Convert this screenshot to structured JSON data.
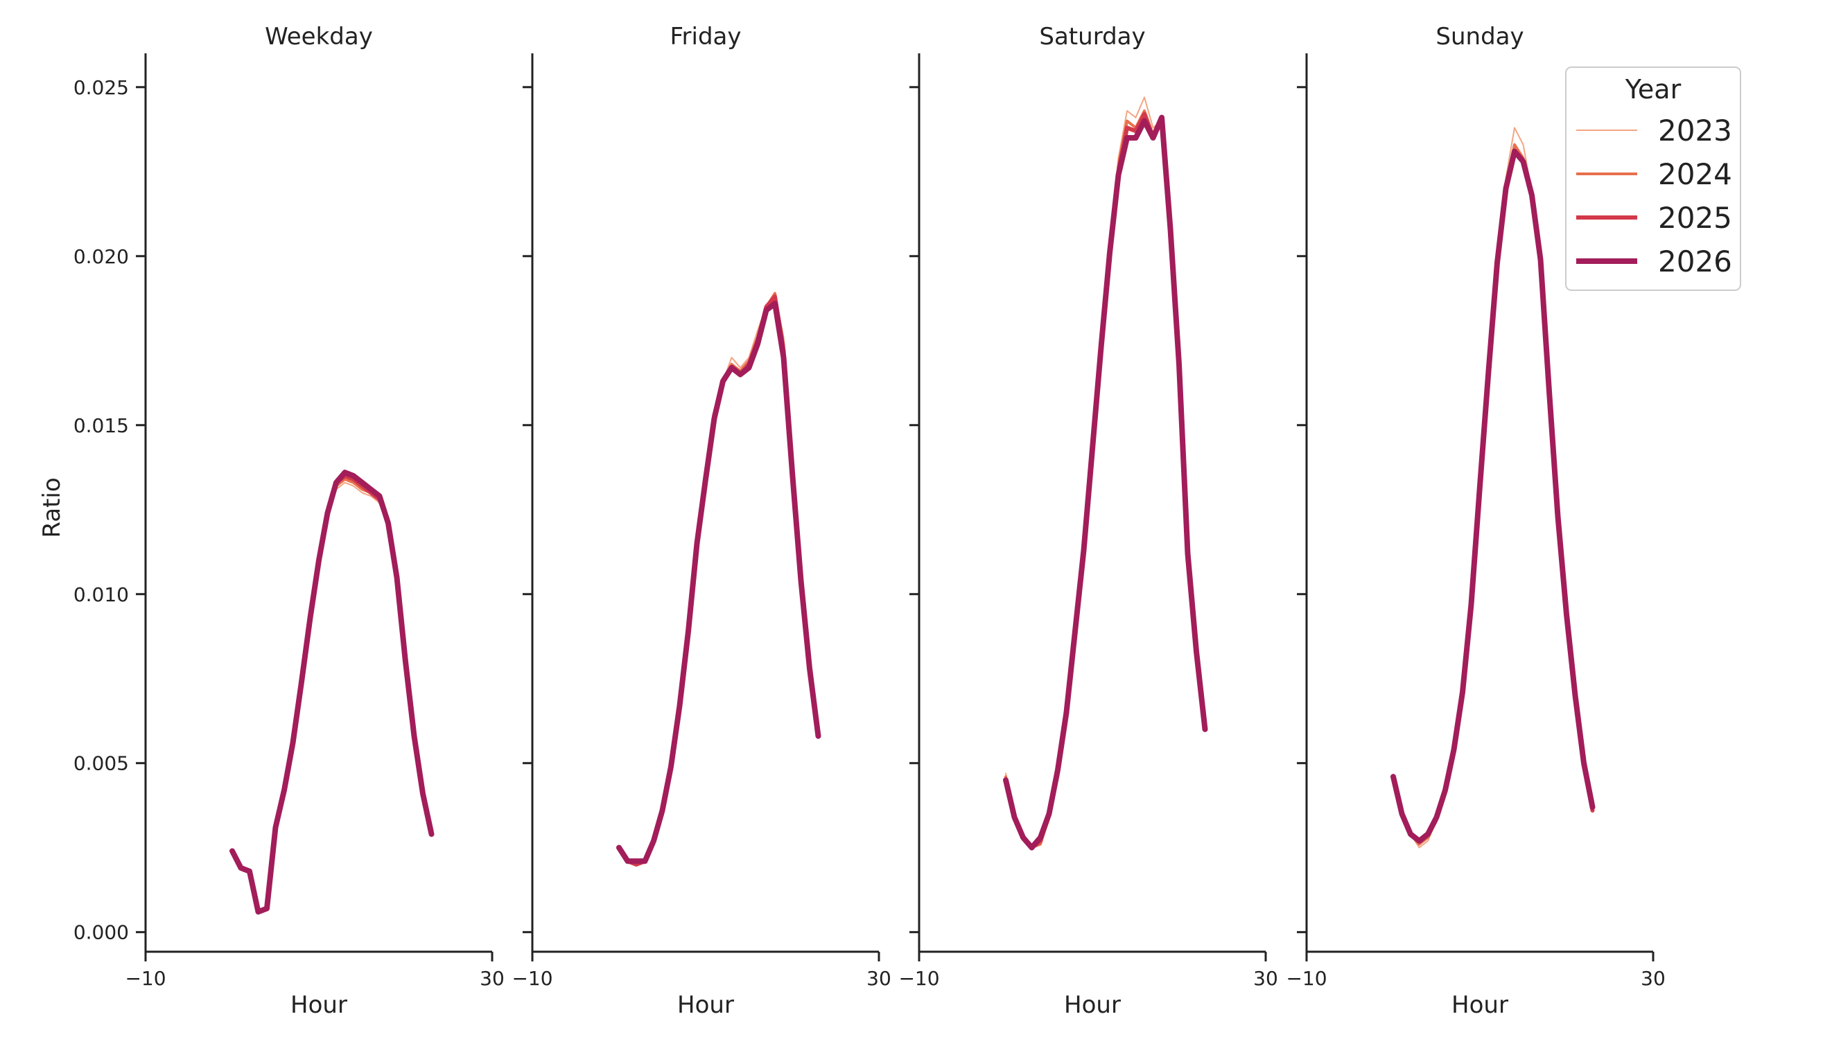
{
  "chart_data": {
    "type": "line",
    "ylabel": "Ratio",
    "xlim": [
      -10,
      30
    ],
    "ylim": [
      -0.0006,
      0.026
    ],
    "x_ticks": [
      {
        "value": -10,
        "label": "−10"
      },
      {
        "value": 30,
        "label": "30"
      }
    ],
    "y_ticks": [
      {
        "value": 0.0,
        "label": "0.000"
      },
      {
        "value": 0.005,
        "label": "0.005"
      },
      {
        "value": 0.01,
        "label": "0.010"
      },
      {
        "value": 0.015,
        "label": "0.015"
      },
      {
        "value": 0.02,
        "label": "0.020"
      },
      {
        "value": 0.025,
        "label": "0.025"
      }
    ],
    "legend": {
      "title": "Year",
      "placement": "upper right",
      "entries": [
        {
          "label": "2023",
          "color": "#f4a582",
          "width": 2
        },
        {
          "label": "2024",
          "color": "#e8704d",
          "width": 4
        },
        {
          "label": "2025",
          "color": "#d3394a",
          "width": 6
        },
        {
          "label": "2026",
          "color": "#a21d5a",
          "width": 8
        }
      ]
    },
    "panels": [
      {
        "title": "Weekday",
        "xlabel": "Hour",
        "x": [
          0,
          1,
          2,
          3,
          4,
          5,
          6,
          7,
          8,
          9,
          10,
          11,
          12,
          13,
          14,
          15,
          16,
          17,
          18,
          19,
          20,
          21,
          22,
          23
        ],
        "series": [
          {
            "name": "2023",
            "values": [
              0.0024,
              0.0019,
              0.0018,
              0.0006,
              0.0007,
              0.0031,
              0.0042,
              0.0056,
              0.0074,
              0.0093,
              0.011,
              0.0124,
              0.0131,
              0.0133,
              0.0132,
              0.013,
              0.0129,
              0.0127,
              0.012,
              0.0104,
              0.008,
              0.0058,
              0.0041,
              0.003
            ]
          },
          {
            "name": "2024",
            "values": [
              0.0024,
              0.0019,
              0.0018,
              0.0006,
              0.0007,
              0.0031,
              0.0042,
              0.0056,
              0.0074,
              0.0093,
              0.011,
              0.0124,
              0.0132,
              0.0134,
              0.0133,
              0.0131,
              0.013,
              0.0128,
              0.0121,
              0.0105,
              0.008,
              0.0058,
              0.0041,
              0.003
            ]
          },
          {
            "name": "2025",
            "values": [
              0.0024,
              0.0019,
              0.0018,
              0.0006,
              0.0007,
              0.0031,
              0.0042,
              0.0056,
              0.0074,
              0.0093,
              0.011,
              0.0124,
              0.0133,
              0.0135,
              0.0134,
              0.0132,
              0.013,
              0.0128,
              0.0121,
              0.0105,
              0.008,
              0.0058,
              0.0041,
              0.003
            ]
          },
          {
            "name": "2026",
            "values": [
              0.0024,
              0.0019,
              0.0018,
              0.0006,
              0.0007,
              0.0031,
              0.0042,
              0.0056,
              0.0074,
              0.0093,
              0.011,
              0.0124,
              0.0133,
              0.0136,
              0.0135,
              0.0133,
              0.0131,
              0.0129,
              0.0121,
              0.0105,
              0.008,
              0.0058,
              0.0041,
              0.0029
            ]
          }
        ]
      },
      {
        "title": "Friday",
        "xlabel": "Hour",
        "x": [
          0,
          1,
          2,
          3,
          4,
          5,
          6,
          7,
          8,
          9,
          10,
          11,
          12,
          13,
          14,
          15,
          16,
          17,
          18,
          19,
          20,
          21,
          22,
          23
        ],
        "series": [
          {
            "name": "2023",
            "values": [
              0.0025,
              0.0021,
              0.002,
              0.0021,
              0.0027,
              0.0036,
              0.0049,
              0.0067,
              0.0089,
              0.0115,
              0.0134,
              0.0153,
              0.0163,
              0.017,
              0.0167,
              0.017,
              0.0178,
              0.0185,
              0.0189,
              0.0176,
              0.0136,
              0.0105,
              0.0078,
              0.0058
            ]
          },
          {
            "name": "2024",
            "values": [
              0.0025,
              0.0021,
              0.002,
              0.0021,
              0.0027,
              0.0036,
              0.0049,
              0.0067,
              0.0089,
              0.0115,
              0.0134,
              0.0153,
              0.0163,
              0.0168,
              0.0166,
              0.0169,
              0.0176,
              0.0185,
              0.0189,
              0.0174,
              0.0136,
              0.0105,
              0.0078,
              0.0058
            ]
          },
          {
            "name": "2025",
            "values": [
              0.0025,
              0.0021,
              0.002,
              0.0021,
              0.0027,
              0.0036,
              0.0049,
              0.0067,
              0.0089,
              0.0115,
              0.0134,
              0.0153,
              0.0163,
              0.0167,
              0.0165,
              0.0168,
              0.0175,
              0.0185,
              0.0188,
              0.0172,
              0.0136,
              0.0105,
              0.0078,
              0.0058
            ]
          },
          {
            "name": "2026",
            "values": [
              0.0025,
              0.0021,
              0.0021,
              0.0021,
              0.0027,
              0.0036,
              0.0049,
              0.0067,
              0.0089,
              0.0115,
              0.0134,
              0.0152,
              0.0163,
              0.0167,
              0.0165,
              0.0167,
              0.0174,
              0.0184,
              0.0186,
              0.017,
              0.0136,
              0.0104,
              0.0078,
              0.0058
            ]
          }
        ]
      },
      {
        "title": "Saturday",
        "xlabel": "Hour",
        "x": [
          0,
          1,
          2,
          3,
          4,
          5,
          6,
          7,
          8,
          9,
          10,
          11,
          12,
          13,
          14,
          15,
          16,
          17,
          18,
          19,
          20,
          21,
          22,
          23
        ],
        "series": [
          {
            "name": "2023",
            "values": [
              0.0047,
              0.0034,
              0.0028,
              0.0025,
              0.0026,
              0.0033,
              0.0045,
              0.0062,
              0.0087,
              0.0112,
              0.0142,
              0.0173,
              0.0201,
              0.0229,
              0.0243,
              0.0241,
              0.0247,
              0.0238,
              0.024,
              0.0208,
              0.0168,
              0.0112,
              0.0083,
              0.006
            ]
          },
          {
            "name": "2024",
            "values": [
              0.0046,
              0.0034,
              0.0028,
              0.0025,
              0.0026,
              0.0034,
              0.0046,
              0.0063,
              0.0088,
              0.0113,
              0.0143,
              0.0173,
              0.0201,
              0.0227,
              0.024,
              0.0238,
              0.0243,
              0.0236,
              0.024,
              0.0208,
              0.0168,
              0.0112,
              0.0083,
              0.006
            ]
          },
          {
            "name": "2025",
            "values": [
              0.0045,
              0.0034,
              0.0028,
              0.0025,
              0.0027,
              0.0035,
              0.0047,
              0.0064,
              0.0089,
              0.0113,
              0.0143,
              0.0173,
              0.0201,
              0.0225,
              0.0238,
              0.0237,
              0.0242,
              0.0235,
              0.024,
              0.0208,
              0.0168,
              0.0112,
              0.0083,
              0.006
            ]
          },
          {
            "name": "2026",
            "values": [
              0.0045,
              0.0034,
              0.0028,
              0.0025,
              0.0028,
              0.0035,
              0.0048,
              0.0065,
              0.0089,
              0.0113,
              0.0143,
              0.0173,
              0.0201,
              0.0224,
              0.0235,
              0.0235,
              0.024,
              0.0235,
              0.0241,
              0.0208,
              0.0168,
              0.0112,
              0.0083,
              0.006
            ]
          }
        ]
      },
      {
        "title": "Sunday",
        "xlabel": "Hour",
        "x": [
          0,
          1,
          2,
          3,
          4,
          5,
          6,
          7,
          8,
          9,
          10,
          11,
          12,
          13,
          14,
          15,
          16,
          17,
          18,
          19,
          20,
          21,
          22,
          23
        ],
        "series": [
          {
            "name": "2023",
            "values": [
              0.0046,
              0.0035,
              0.0029,
              0.0025,
              0.0027,
              0.0033,
              0.0042,
              0.0054,
              0.0071,
              0.0097,
              0.0132,
              0.0168,
              0.0199,
              0.0223,
              0.0238,
              0.0233,
              0.0219,
              0.0199,
              0.016,
              0.0123,
              0.0094,
              0.007,
              0.005,
              0.0036
            ]
          },
          {
            "name": "2024",
            "values": [
              0.0046,
              0.0035,
              0.0029,
              0.0026,
              0.0028,
              0.0033,
              0.0042,
              0.0054,
              0.0071,
              0.0097,
              0.0132,
              0.0167,
              0.0198,
              0.0221,
              0.0233,
              0.0229,
              0.0218,
              0.0199,
              0.016,
              0.0123,
              0.0094,
              0.007,
              0.005,
              0.0036
            ]
          },
          {
            "name": "2025",
            "values": [
              0.0046,
              0.0035,
              0.0029,
              0.0027,
              0.0029,
              0.0034,
              0.0042,
              0.0054,
              0.0071,
              0.0097,
              0.0132,
              0.0166,
              0.0198,
              0.022,
              0.0231,
              0.0228,
              0.0218,
              0.0199,
              0.016,
              0.0123,
              0.0094,
              0.007,
              0.005,
              0.0036
            ]
          },
          {
            "name": "2026",
            "values": [
              0.0046,
              0.0035,
              0.0029,
              0.0027,
              0.0029,
              0.0034,
              0.0042,
              0.0054,
              0.0071,
              0.0097,
              0.0132,
              0.0166,
              0.0198,
              0.022,
              0.0231,
              0.0228,
              0.0218,
              0.0199,
              0.016,
              0.0123,
              0.0094,
              0.007,
              0.005,
              0.0037
            ]
          }
        ]
      }
    ]
  }
}
